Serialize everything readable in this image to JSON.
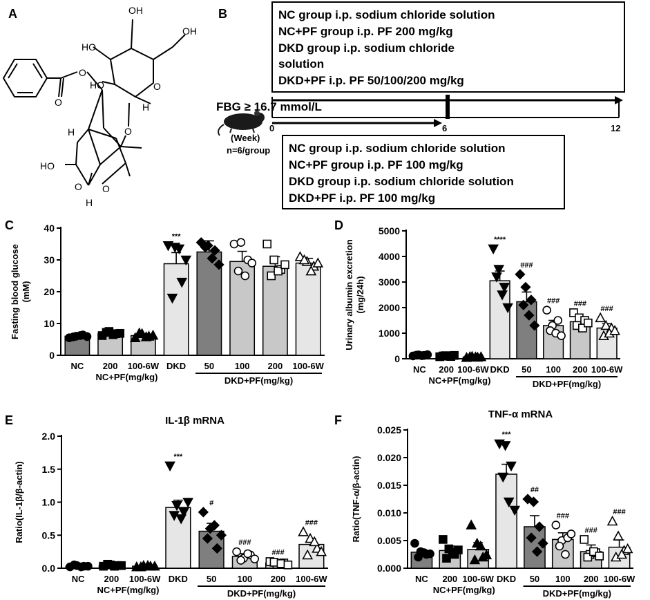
{
  "panels": {
    "A": "A",
    "B": "B",
    "C": "C",
    "D": "D",
    "E": "E",
    "F": "F"
  },
  "panel_a": {
    "atom_labels": [
      "OH",
      "HO",
      "HO",
      "OH",
      "O",
      "O",
      "H",
      "O",
      "HO",
      "H",
      "O",
      "O",
      "O",
      "H",
      "O"
    ]
  },
  "panel_b": {
    "top_box": [
      "NC group i.p. sodium chloride solution",
      "NC+PF group i.p. PF 200 mg/kg",
      "DKD group i.p. sodium chloride",
      "solution",
      "DKD+PF i.p. PF 50/100/200 mg/kg"
    ],
    "bottom_box": [
      "NC group i.p. sodium chloride solution",
      "NC+PF group i.p. PF 100 mg/kg",
      "DKD group i.p. sodium chloride solution",
      "DKD+PF i.p. PF 100 mg/kg"
    ],
    "criterion": "FBG ≥ 16.7 mmol/L",
    "week_label": "(Week)",
    "n_label": "n=6/group",
    "timepoints": [
      "0",
      "6",
      "12"
    ]
  },
  "chart_data": [
    {
      "panel": "C",
      "type": "bar",
      "title": "",
      "ylabel": "Fasting blood glucose (mM)",
      "ylim": [
        0,
        40
      ],
      "yticks": [
        0,
        10,
        20,
        30,
        40
      ],
      "categories": [
        "NC",
        "200",
        "100-6W",
        "DKD",
        "50",
        "100",
        "200",
        "100-6W"
      ],
      "group_labels": [
        "NC+PF(mg/kg)",
        "DKD+PF(mg/kg)"
      ],
      "values": [
        6.0,
        6.8,
        6.2,
        28.8,
        32.5,
        29.5,
        28.0,
        29.0
      ],
      "errors": [
        0.4,
        0.5,
        0.6,
        3.5,
        3.5,
        3.2,
        3.0,
        1.5
      ],
      "annotations": [
        "",
        "",
        "",
        "***",
        "",
        "",
        "",
        ""
      ],
      "fills": [
        "#7f7f7f",
        "#c8c8c8",
        "#c8c8c8",
        "#e6e6e6",
        "#7f7f7f",
        "#c8c8c8",
        "#c8c8c8",
        "#e6e6e6"
      ],
      "markers": [
        "circle",
        "square",
        "triangle",
        "triangle-down",
        "diamond",
        "circle-open",
        "square-open",
        "triangle-open"
      ],
      "points": [
        [
          5.5,
          6.0,
          6.4,
          5.8,
          6.2,
          5.9
        ],
        [
          6.2,
          7.5,
          6.8,
          7.2,
          6.5,
          6.9
        ],
        [
          5.5,
          6.8,
          6.0,
          7.0,
          5.8,
          6.3
        ],
        [
          34.5,
          34.0,
          23.0,
          18.0,
          33.5,
          30.0
        ],
        [
          35.5,
          34.5,
          33.0,
          34.0,
          30.5,
          28.5
        ],
        [
          35.0,
          35.5,
          30.0,
          26.5,
          25.0,
          29.0
        ],
        [
          35.0,
          30.0,
          27.0,
          25.0,
          26.5,
          28.5
        ],
        [
          31.0,
          29.5,
          28.0,
          30.0,
          26.5,
          29.0
        ]
      ]
    },
    {
      "panel": "D",
      "type": "bar",
      "title": "",
      "ylabel": "Urinary albumin excretion (mg/24h)",
      "ylim": [
        0,
        5000
      ],
      "yticks": [
        0,
        1000,
        2000,
        3000,
        4000,
        5000
      ],
      "categories": [
        "NC",
        "200",
        "100-6W",
        "DKD",
        "50",
        "100",
        "200",
        "100-6W"
      ],
      "group_labels": [
        "NC+PF(mg/kg)",
        "DKD+PF(mg/kg)"
      ],
      "values": [
        130,
        100,
        70,
        3050,
        2230,
        1300,
        1450,
        1200
      ],
      "errors": [
        30,
        30,
        20,
        380,
        380,
        200,
        150,
        170
      ],
      "annotations": [
        "",
        "",
        "",
        "****",
        "###",
        "###",
        "###",
        "###"
      ],
      "fills": [
        "#7f7f7f",
        "#c8c8c8",
        "#c8c8c8",
        "#e6e6e6",
        "#7f7f7f",
        "#c8c8c8",
        "#c8c8c8",
        "#e6e6e6"
      ],
      "markers": [
        "circle",
        "square",
        "triangle",
        "triangle-down",
        "diamond",
        "circle-open",
        "square-open",
        "triangle-open"
      ],
      "points": [
        [
          110,
          150,
          130,
          140,
          120,
          160
        ],
        [
          80,
          120,
          90,
          110,
          100,
          130
        ],
        [
          50,
          90,
          60,
          80,
          70,
          75
        ],
        [
          4300,
          3500,
          2800,
          3200,
          2500,
          2000
        ],
        [
          3300,
          2800,
          2300,
          2100,
          1700,
          1300
        ],
        [
          1900,
          1300,
          1500,
          1100,
          1000,
          900
        ],
        [
          1800,
          1600,
          1500,
          1300,
          1200,
          1400
        ],
        [
          1600,
          1300,
          1200,
          900,
          1000,
          1100
        ]
      ]
    },
    {
      "panel": "E",
      "type": "bar",
      "title": "IL-1β mRNA",
      "ylabel": "Ratio(IL-1β/β-actin)",
      "ylim": [
        0,
        2.0
      ],
      "yticks": [
        "0.0",
        "0.5",
        "1.0",
        "1.5",
        "2.0"
      ],
      "categories": [
        "NC",
        "200",
        "100-6W",
        "DKD",
        "50",
        "100",
        "200",
        "100-6W"
      ],
      "group_labels": [
        "NC+PF(mg/kg)",
        "DKD+PF(mg/kg)"
      ],
      "values": [
        0.03,
        0.04,
        0.03,
        0.92,
        0.56,
        0.18,
        0.08,
        0.36
      ],
      "errors": [
        0.01,
        0.01,
        0.01,
        0.11,
        0.12,
        0.04,
        0.02,
        0.08
      ],
      "annotations": [
        "",
        "",
        "",
        "***",
        "#",
        "###",
        "###",
        "###"
      ],
      "fills": [
        "#7f7f7f",
        "#c8c8c8",
        "#c8c8c8",
        "#e6e6e6",
        "#7f7f7f",
        "#c8c8c8",
        "#c8c8c8",
        "#e6e6e6"
      ],
      "markers": [
        "circle",
        "square",
        "triangle",
        "triangle-down",
        "diamond",
        "circle-open",
        "square-open",
        "triangle-open"
      ],
      "points": [
        [
          0.02,
          0.04,
          0.03,
          0.05,
          0.02,
          0.03
        ],
        [
          0.03,
          0.05,
          0.04,
          0.06,
          0.03,
          0.04
        ],
        [
          0.02,
          0.04,
          0.03,
          0.02,
          0.04,
          0.03
        ],
        [
          1.55,
          0.95,
          0.85,
          0.8,
          0.75,
          1.0
        ],
        [
          0.85,
          0.6,
          0.3,
          0.45,
          0.65,
          0.5
        ],
        [
          0.25,
          0.15,
          0.2,
          0.12,
          0.22,
          0.14
        ],
        [
          0.1,
          0.06,
          0.08,
          0.09,
          0.07,
          0.05
        ],
        [
          0.55,
          0.45,
          0.3,
          0.2,
          0.4,
          0.25
        ]
      ]
    },
    {
      "panel": "F",
      "type": "bar",
      "title": "TNF-α mRNA",
      "ylabel": "Ratio(TNF-α/β-actin)",
      "ylim": [
        0,
        0.025
      ],
      "yticks": [
        "0.000",
        "0.005",
        "0.010",
        "0.015",
        "0.020",
        "0.025"
      ],
      "categories": [
        "NC",
        "200",
        "100-6W",
        "DKD",
        "50",
        "100",
        "200",
        "100-6W"
      ],
      "group_labels": [
        "NC+PF(mg/kg)",
        "DKD+PF(mg/kg)"
      ],
      "values": [
        0.0029,
        0.0032,
        0.0034,
        0.017,
        0.0075,
        0.0052,
        0.003,
        0.0038
      ],
      "errors": [
        0.0005,
        0.0008,
        0.0012,
        0.0018,
        0.002,
        0.0012,
        0.0012,
        0.0013
      ],
      "annotations": [
        "",
        "",
        "",
        "***",
        "##",
        "###",
        "###",
        "###"
      ],
      "fills": [
        "#7f7f7f",
        "#c8c8c8",
        "#c8c8c8",
        "#e6e6e6",
        "#7f7f7f",
        "#c8c8c8",
        "#c8c8c8",
        "#e6e6e6"
      ],
      "markers": [
        "circle",
        "square",
        "triangle",
        "triangle-down",
        "diamond",
        "circle-open",
        "square-open",
        "triangle-open"
      ],
      "points": [
        [
          0.0045,
          0.003,
          0.0025,
          0.002,
          0.0028,
          0.0026
        ],
        [
          0.0052,
          0.0035,
          0.0025,
          0.0018,
          0.003,
          0.0033
        ],
        [
          0.0078,
          0.0045,
          0.002,
          0.0015,
          0.004,
          0.0024
        ],
        [
          0.0225,
          0.0222,
          0.0185,
          0.0165,
          0.012,
          0.0105
        ],
        [
          0.0125,
          0.012,
          0.0075,
          0.0055,
          0.003,
          0.0045
        ],
        [
          0.0078,
          0.005,
          0.0055,
          0.004,
          0.0025,
          0.0062
        ],
        [
          0.0052,
          0.0025,
          0.0028,
          0.002,
          0.003,
          0.0022
        ],
        [
          0.0085,
          0.0058,
          0.0032,
          0.002,
          0.0025,
          0.0035
        ]
      ]
    }
  ]
}
